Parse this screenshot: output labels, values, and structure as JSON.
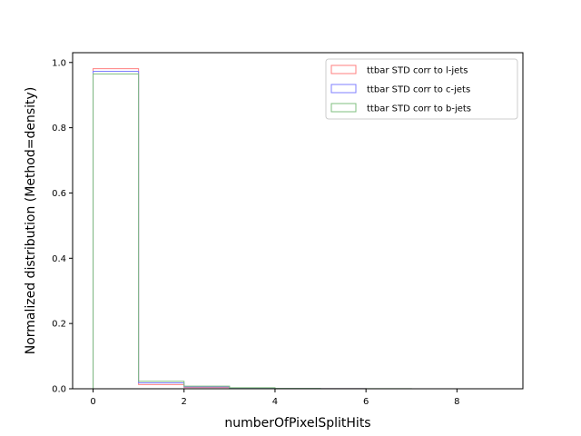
{
  "chart_data": {
    "type": "histogram",
    "title": "",
    "xlabel": "numberOfPixelSplitHits",
    "ylabel": "Normalized distribution (Method=density)",
    "xlim": [
      -0.45,
      9.45
    ],
    "ylim": [
      0,
      1.03
    ],
    "xticks": [
      0,
      2,
      4,
      6,
      8
    ],
    "yticks": [
      0.0,
      0.2,
      0.4,
      0.6,
      0.8,
      1.0
    ],
    "ytick_labels": [
      "0.0",
      "0.2",
      "0.4",
      "0.6",
      "0.8",
      "1.0"
    ],
    "bin_edges": [
      0,
      1,
      2,
      3,
      4,
      5,
      6,
      7,
      8,
      9
    ],
    "histtype": "step",
    "grid": false,
    "legend_position": "top-right",
    "series": [
      {
        "name": "ttbar STD corr to l-jets",
        "color": "#ff7f7f",
        "values": [
          0.981,
          0.013,
          0.004,
          0.001,
          0.0005,
          0.0003,
          0.0001,
          0.0001,
          0.0
        ]
      },
      {
        "name": "ttbar STD corr to c-jets",
        "color": "#7f7fff",
        "values": [
          0.973,
          0.018,
          0.006,
          0.002,
          0.0007,
          0.0003,
          0.0001,
          0.0001,
          0.0
        ]
      },
      {
        "name": "ttbar STD corr to b-jets",
        "color": "#7fbf7f",
        "values": [
          0.965,
          0.023,
          0.008,
          0.003,
          0.001,
          0.0004,
          0.0002,
          0.0001,
          0.0
        ]
      }
    ]
  }
}
